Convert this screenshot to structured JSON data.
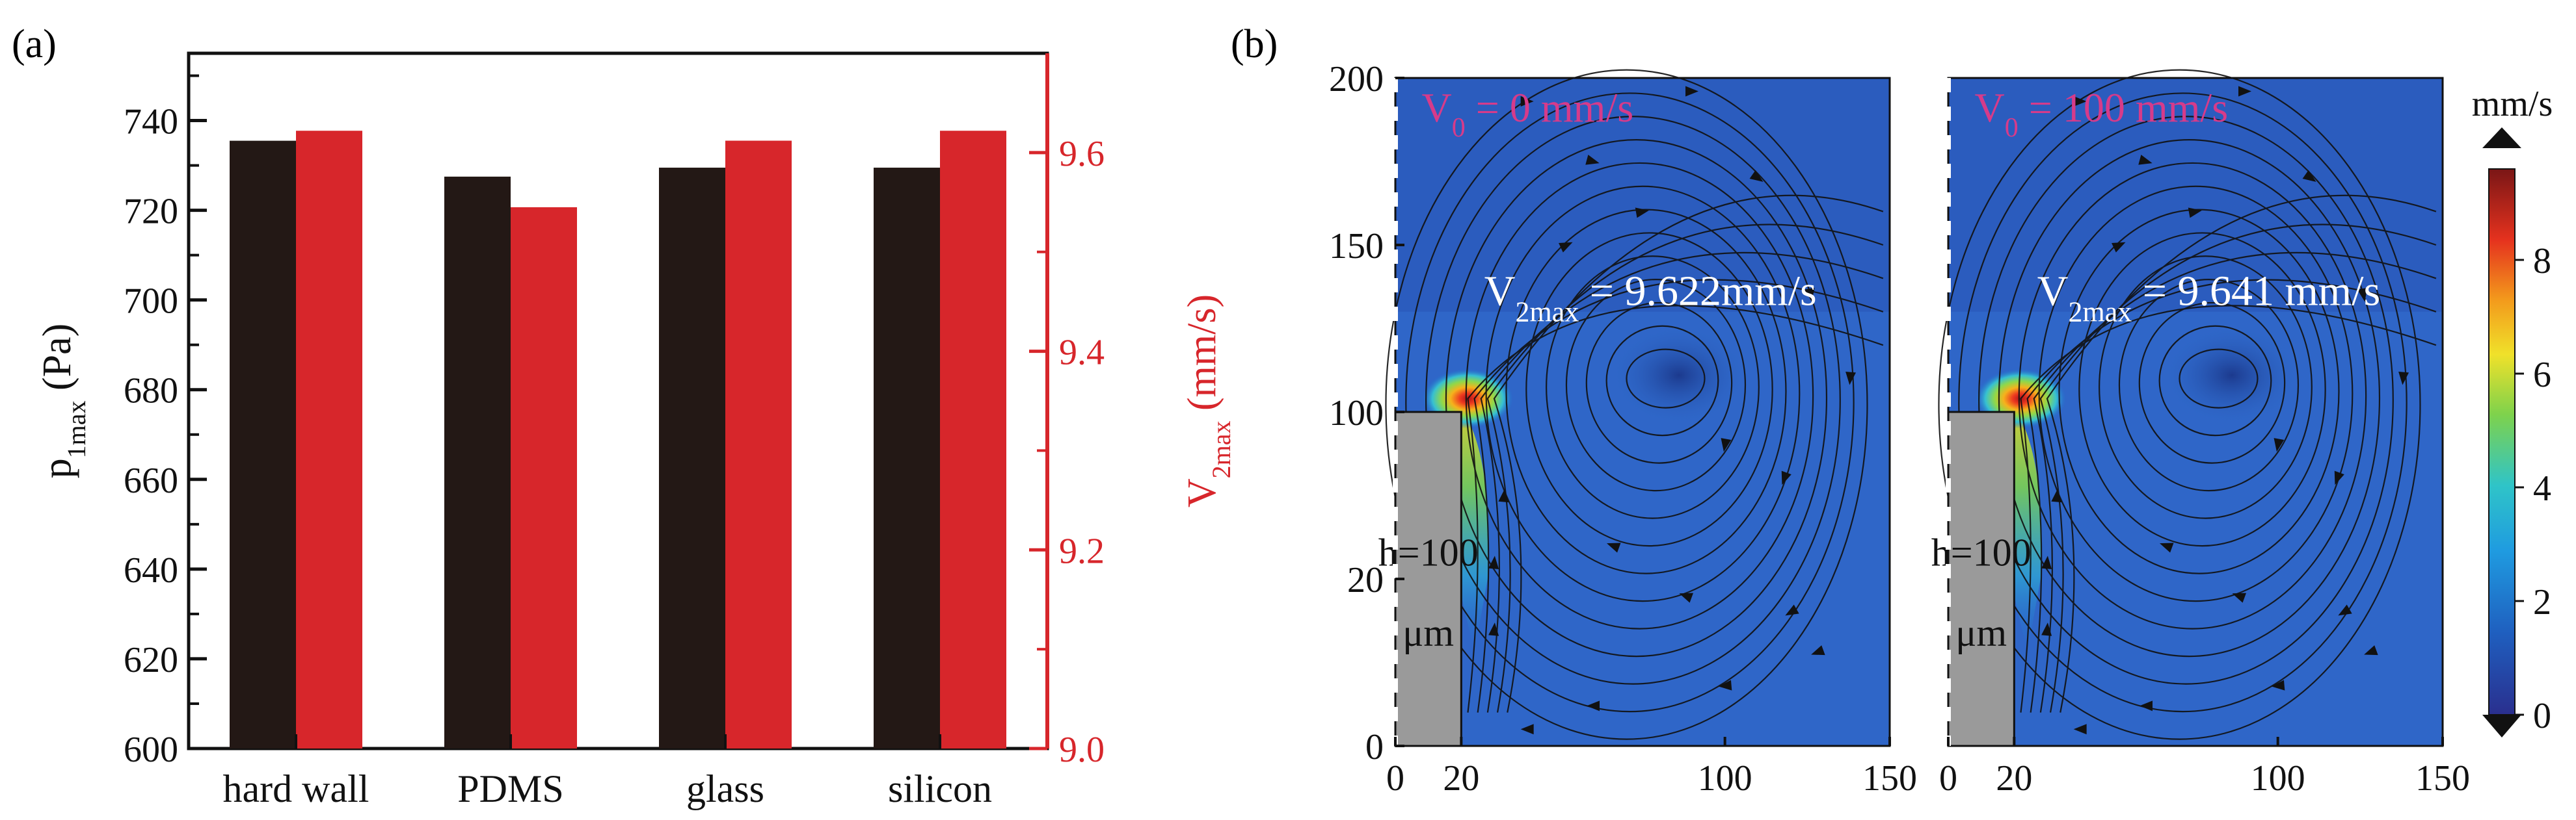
{
  "panels": {
    "a_label": "(a)",
    "b_label": "(b)"
  },
  "chart_data": [
    {
      "type": "bar",
      "panel": "(a)",
      "categories": [
        "hard wall",
        "PDMS",
        "glass",
        "silicon"
      ],
      "series": [
        {
          "name": "p1max",
          "axis": "left",
          "color": "#231815",
          "values": [
            735.5,
            727.5,
            729.5,
            729.5
          ]
        },
        {
          "name": "V2max",
          "axis": "right",
          "color": "#d7262b",
          "values": [
            9.622,
            9.545,
            9.612,
            9.622
          ]
        }
      ],
      "ylabel_left": {
        "main": "p",
        "sub": "1max",
        "rest": " (Pa)"
      },
      "ylabel_right": {
        "main": "V",
        "sub": "2max",
        "rest": " (mm/s)"
      },
      "ylim_left": [
        600,
        755
      ],
      "ylim_right": [
        9.0,
        9.7
      ],
      "left_ticks": [
        "600",
        "620",
        "640",
        "660",
        "680",
        "700",
        "720",
        "740"
      ],
      "right_ticks": [
        "9.0",
        "9.2",
        "9.4",
        "9.6"
      ],
      "left_tick_values": [
        600,
        620,
        640,
        660,
        680,
        700,
        720,
        740
      ],
      "right_tick_values": [
        9.0,
        9.2,
        9.4,
        9.6
      ]
    },
    {
      "type": "heatmap",
      "panel": "(b)",
      "subplots": [
        {
          "label_main": "V",
          "label_sub": "0",
          "label_rest": " = 0 mm/s",
          "vmax_main": "V",
          "vmax_sub": "2max",
          "vmax_rest": " = 9.622mm/s",
          "obstacle_l1": "h=100",
          "obstacle_l2": "μm"
        },
        {
          "label_main": "V",
          "label_sub": "0",
          "label_rest": " = 100 mm/s",
          "vmax_main": "V",
          "vmax_sub": "2max",
          "vmax_rest": " = 9.641 mm/s",
          "obstacle_l1": "h=100",
          "obstacle_l2": "μm"
        }
      ],
      "x_ticks": [
        "0",
        "20",
        "100",
        "150"
      ],
      "x_tick_values": [
        0,
        20,
        100,
        150
      ],
      "y_ticks": [
        "0",
        "20",
        "100",
        "150",
        "200"
      ],
      "y_tick_positions": [
        0,
        50,
        100,
        150,
        200
      ],
      "xlim": [
        0,
        150
      ],
      "ylim": [
        0,
        200
      ],
      "colorbar": {
        "unit": "mm/s",
        "ticks": [
          "0",
          "2",
          "4",
          "6",
          "8"
        ],
        "tick_values": [
          0,
          2,
          4,
          6,
          8
        ],
        "range": [
          0,
          9.6
        ]
      }
    }
  ]
}
